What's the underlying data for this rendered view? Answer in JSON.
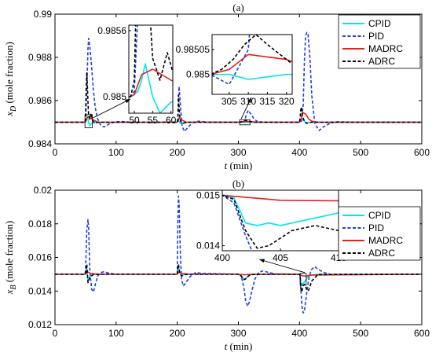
{
  "chart_data": [
    {
      "type": "line",
      "title": "(a)",
      "xlabel": "t (min)",
      "ylabel": "x_D (mole fraction)",
      "xlim": [
        0,
        600
      ],
      "ylim": [
        0.984,
        0.99
      ],
      "xticks": [
        0,
        100,
        200,
        300,
        400,
        500,
        600
      ],
      "yticks": [
        0.984,
        0.986,
        0.988,
        0.99
      ],
      "ytick_labels": [
        "0.984",
        "0.986",
        "0.988",
        "0.99"
      ],
      "legend_position": "top-right",
      "series": [
        {
          "name": "CPID",
          "color": "#00e5ee",
          "dash": "solid",
          "x": [
            0,
            49,
            50,
            51,
            52,
            53,
            54,
            55,
            57,
            60,
            70,
            200,
            201,
            202,
            203,
            205,
            210,
            220,
            300,
            305,
            310,
            320,
            400,
            401,
            403,
            405,
            408,
            410,
            415,
            420,
            430,
            600
          ],
          "y": [
            0.985,
            0.985,
            0.98502,
            0.98505,
            0.98515,
            0.9853,
            0.98515,
            0.985,
            0.98485,
            0.98495,
            0.985,
            0.985,
            0.98505,
            0.98515,
            0.98505,
            0.98495,
            0.98498,
            0.985,
            0.985,
            0.985,
            0.98499,
            0.985,
            0.985,
            0.98502,
            0.98508,
            0.98512,
            0.98505,
            0.98495,
            0.98498,
            0.985,
            0.985,
            0.985
          ]
        },
        {
          "name": "PID",
          "color": "#1f3fe0",
          "dash": "dashed",
          "x": [
            0,
            49,
            50,
            52,
            54,
            55,
            57,
            60,
            63,
            66,
            70,
            75,
            80,
            85,
            90,
            100,
            110,
            120,
            130,
            140,
            150,
            200,
            201,
            202,
            203,
            205,
            208,
            212,
            218,
            225,
            235,
            250,
            300,
            305,
            310,
            313,
            316,
            320,
            325,
            330,
            340,
            400,
            403,
            406,
            408,
            410,
            412,
            414,
            417,
            420,
            425,
            432,
            440,
            450,
            460,
            475,
            490,
            600
          ],
          "y": [
            0.985,
            0.985,
            0.98505,
            0.9865,
            0.9884,
            0.98888,
            0.9885,
            0.98755,
            0.98645,
            0.98565,
            0.98515,
            0.98485,
            0.98478,
            0.98485,
            0.98495,
            0.98502,
            0.98503,
            0.98501,
            0.985,
            0.985,
            0.985,
            0.985,
            0.9852,
            0.986,
            0.98665,
            0.98585,
            0.9848,
            0.98458,
            0.98478,
            0.98498,
            0.98505,
            0.985,
            0.985,
            0.98498,
            0.98505,
            0.98535,
            0.98555,
            0.9854,
            0.98518,
            0.98505,
            0.985,
            0.985,
            0.98505,
            0.9858,
            0.9878,
            0.989,
            0.98915,
            0.98905,
            0.988,
            0.98625,
            0.98495,
            0.98462,
            0.9848,
            0.98495,
            0.98502,
            0.98501,
            0.985,
            0.985
          ]
        },
        {
          "name": "MADRC",
          "color": "#e8201a",
          "dash": "solid",
          "x": [
            0,
            49,
            50,
            52,
            55,
            60,
            70,
            200,
            201,
            203,
            206,
            215,
            300,
            305,
            310,
            320,
            330,
            400,
            402,
            405,
            410,
            415,
            420,
            430,
            600
          ],
          "y": [
            0.985,
            0.985,
            0.98502,
            0.9852,
            0.98525,
            0.98515,
            0.985,
            0.985,
            0.98503,
            0.9852,
            0.98512,
            0.985,
            0.985,
            0.98501,
            0.98504,
            0.98503,
            0.985,
            0.985,
            0.9851,
            0.98545,
            0.98538,
            0.98515,
            0.98505,
            0.985,
            0.985
          ]
        },
        {
          "name": "ADRC",
          "color": "#000000",
          "dash": "dashed",
          "x": [
            0,
            49,
            50,
            51,
            52,
            53,
            54,
            55,
            57,
            59,
            62,
            66,
            70,
            200,
            201,
            202,
            203,
            204,
            206,
            210,
            215,
            300,
            303,
            306,
            309,
            312,
            315,
            320,
            325,
            400,
            401,
            402,
            403,
            405,
            408,
            412,
            418,
            425,
            600
          ],
          "y": [
            0.985,
            0.985,
            0.98515,
            0.9866,
            0.98728,
            0.9867,
            0.9859,
            0.98535,
            0.98515,
            0.9854,
            0.98505,
            0.98495,
            0.985,
            0.985,
            0.9851,
            0.98625,
            0.98572,
            0.9853,
            0.98502,
            0.98495,
            0.985,
            0.985,
            0.98501,
            0.98503,
            0.98506,
            0.98508,
            0.98506,
            0.98503,
            0.985,
            0.985,
            0.9852,
            0.98558,
            0.9857,
            0.98525,
            0.98505,
            0.98495,
            0.985,
            0.985,
            0.985
          ]
        }
      ],
      "inset_1": {
        "xlim": [
          48.5,
          60.5
        ],
        "ylim": [
          0.98485,
          0.98565
        ],
        "xticks": [
          50,
          55,
          60
        ],
        "ytick_labels": [
          "0.985",
          "0.9856"
        ],
        "yticks": [
          0.985,
          0.9856
        ]
      },
      "inset_2": {
        "xlim": [
          300.5,
          321.5
        ],
        "ylim": [
          0.98496,
          0.98508
        ],
        "xticks": [
          305,
          310,
          315,
          320
        ],
        "ytick_labels": [
          "0.985",
          "0.98505"
        ],
        "yticks": [
          0.985,
          0.98505
        ]
      }
    },
    {
      "type": "line",
      "title": "(b)",
      "xlabel": "t (min)",
      "ylabel": "x_B (mole fraction)",
      "xlim": [
        0,
        600
      ],
      "ylim": [
        0.012,
        0.02
      ],
      "xticks": [
        0,
        100,
        200,
        300,
        400,
        500,
        600
      ],
      "yticks": [
        0.012,
        0.014,
        0.016,
        0.018,
        0.02
      ],
      "ytick_labels": [
        "0.012",
        "0.014",
        "0.016",
        "0.018",
        "0.02"
      ],
      "legend_position": "top-right",
      "series": [
        {
          "name": "CPID",
          "color": "#00e5ee",
          "dash": "solid",
          "x": [
            0,
            49,
            50,
            52,
            54,
            57,
            62,
            70,
            200,
            201,
            202,
            204,
            207,
            212,
            220,
            300,
            303,
            306,
            309,
            312,
            316,
            320,
            330,
            400,
            401,
            402,
            403,
            404,
            405,
            406,
            408,
            410,
            413,
            418,
            430,
            600
          ],
          "y": [
            0.015,
            0.015,
            0.01505,
            0.01535,
            0.0146,
            0.01485,
            0.01498,
            0.015,
            0.015,
            0.0153,
            0.01545,
            0.0151,
            0.01492,
            0.01498,
            0.015,
            0.015,
            0.01497,
            0.01485,
            0.0147,
            0.01475,
            0.0149,
            0.01498,
            0.015,
            0.015,
            0.01495,
            0.01445,
            0.0144,
            0.01445,
            0.0144,
            0.01445,
            0.01455,
            0.01465,
            0.0148,
            0.01495,
            0.015,
            0.015
          ]
        },
        {
          "name": "PID",
          "color": "#1f3fe0",
          "dash": "dashed",
          "x": [
            0,
            49,
            50,
            52,
            54,
            55,
            57,
            60,
            63,
            66,
            70,
            75,
            80,
            90,
            100,
            110,
            200,
            201,
            202,
            203,
            205,
            207,
            210,
            215,
            222,
            230,
            240,
            300,
            303,
            306,
            309,
            312,
            315,
            318,
            322,
            327,
            333,
            340,
            350,
            360,
            400,
            401,
            402,
            404,
            406,
            408,
            410,
            413,
            416,
            420,
            425,
            430,
            440,
            450,
            460,
            600
          ],
          "y": [
            0.015,
            0.015,
            0.0152,
            0.0176,
            0.01825,
            0.0178,
            0.01525,
            0.0141,
            0.01395,
            0.0144,
            0.0149,
            0.0151,
            0.01515,
            0.01505,
            0.015,
            0.015,
            0.015,
            0.0182,
            0.01965,
            0.0192,
            0.0164,
            0.0147,
            0.0143,
            0.01455,
            0.0149,
            0.0151,
            0.01505,
            0.015,
            0.01495,
            0.0147,
            0.0142,
            0.0134,
            0.0131,
            0.01335,
            0.014,
            0.0147,
            0.0151,
            0.0152,
            0.0151,
            0.01502,
            0.015,
            0.01485,
            0.0142,
            0.0131,
            0.0127,
            0.0128,
            0.0134,
            0.0142,
            0.0149,
            0.0153,
            0.01545,
            0.0153,
            0.0151,
            0.015,
            0.015,
            0.015
          ]
        },
        {
          "name": "MADRC",
          "color": "#e8201a",
          "dash": "solid",
          "x": [
            0,
            49,
            50,
            53,
            58,
            70,
            200,
            201,
            203,
            207,
            220,
            300,
            305,
            310,
            320,
            400,
            402,
            405,
            410,
            420,
            600
          ],
          "y": [
            0.015,
            0.015,
            0.01502,
            0.01515,
            0.01505,
            0.015,
            0.015,
            0.01505,
            0.01515,
            0.01505,
            0.015,
            0.015,
            0.01498,
            0.01497,
            0.01499,
            0.015,
            0.01496,
            0.0149,
            0.01489,
            0.01495,
            0.015
          ]
        },
        {
          "name": "ADRC",
          "color": "#000000",
          "dash": "dashed",
          "x": [
            0,
            49,
            50,
            52,
            54,
            57,
            62,
            70,
            200,
            201,
            202,
            204,
            207,
            212,
            220,
            300,
            303,
            306,
            309,
            312,
            316,
            320,
            330,
            400,
            401,
            402,
            403,
            404,
            406,
            408,
            410,
            412,
            415,
            420,
            430,
            600
          ],
          "y": [
            0.015,
            0.015,
            0.01505,
            0.0156,
            0.0145,
            0.01482,
            0.01497,
            0.015,
            0.015,
            0.0154,
            0.0156,
            0.0151,
            0.0149,
            0.01497,
            0.015,
            0.015,
            0.01497,
            0.01482,
            0.01468,
            0.01472,
            0.01488,
            0.01497,
            0.015,
            0.015,
            0.01492,
            0.0143,
            0.01395,
            0.014,
            0.0143,
            0.0144,
            0.0143,
            0.01402,
            0.01405,
            0.0146,
            0.01498,
            0.015
          ]
        }
      ],
      "inset_1": {
        "xlim": [
          400,
          410
        ],
        "ylim": [
          0.0139,
          0.0151
        ],
        "xticks": [
          400,
          405,
          410
        ],
        "ytick_labels": [
          "0.014",
          "0.015"
        ],
        "yticks": [
          0.014,
          0.015
        ]
      }
    }
  ]
}
